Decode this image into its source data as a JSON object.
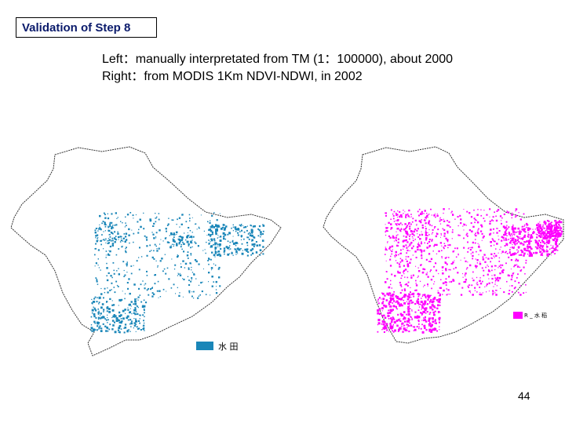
{
  "slide": {
    "title": "Validation of Step 8",
    "caption_left": "Left：manually interpretated from TM (1：100000), about 2000",
    "caption_right": "Right：from  MODIS 1Km NDVI-NDWI, in 2002",
    "page_number": "44"
  },
  "maps": {
    "left": {
      "legend_label": "水 田",
      "color": "#1a86b8"
    },
    "right": {
      "legend_label": "R _ 水 稻",
      "color": "#ff00ff"
    }
  }
}
